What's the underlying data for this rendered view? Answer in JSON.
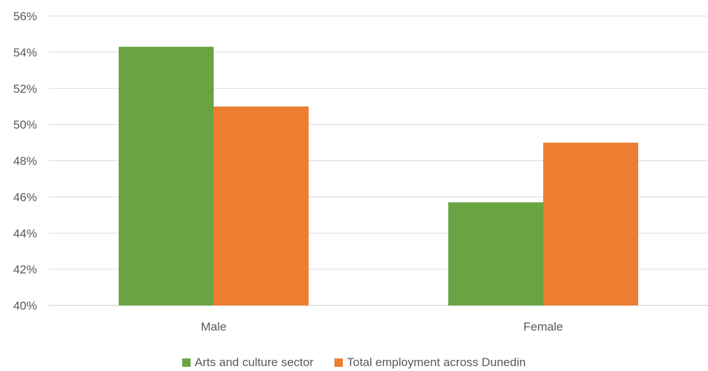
{
  "chart_data": {
    "type": "bar",
    "categories": [
      "Male",
      "Female"
    ],
    "series": [
      {
        "name": "Arts and culture sector",
        "values": [
          54.3,
          45.7
        ],
        "color": "#6aa442"
      },
      {
        "name": "Total employment across Dunedin",
        "values": [
          51.0,
          49.0
        ],
        "color": "#ed7d31"
      }
    ],
    "ylim": [
      40,
      56
    ],
    "yticks": [
      "40%",
      "42%",
      "44%",
      "46%",
      "48%",
      "50%",
      "52%",
      "54%",
      "56%"
    ],
    "ytick_values": [
      40,
      42,
      44,
      46,
      48,
      50,
      52,
      54,
      56
    ],
    "grid": true,
    "legend_position": "bottom",
    "gridline_color": "#d9d9d9"
  }
}
